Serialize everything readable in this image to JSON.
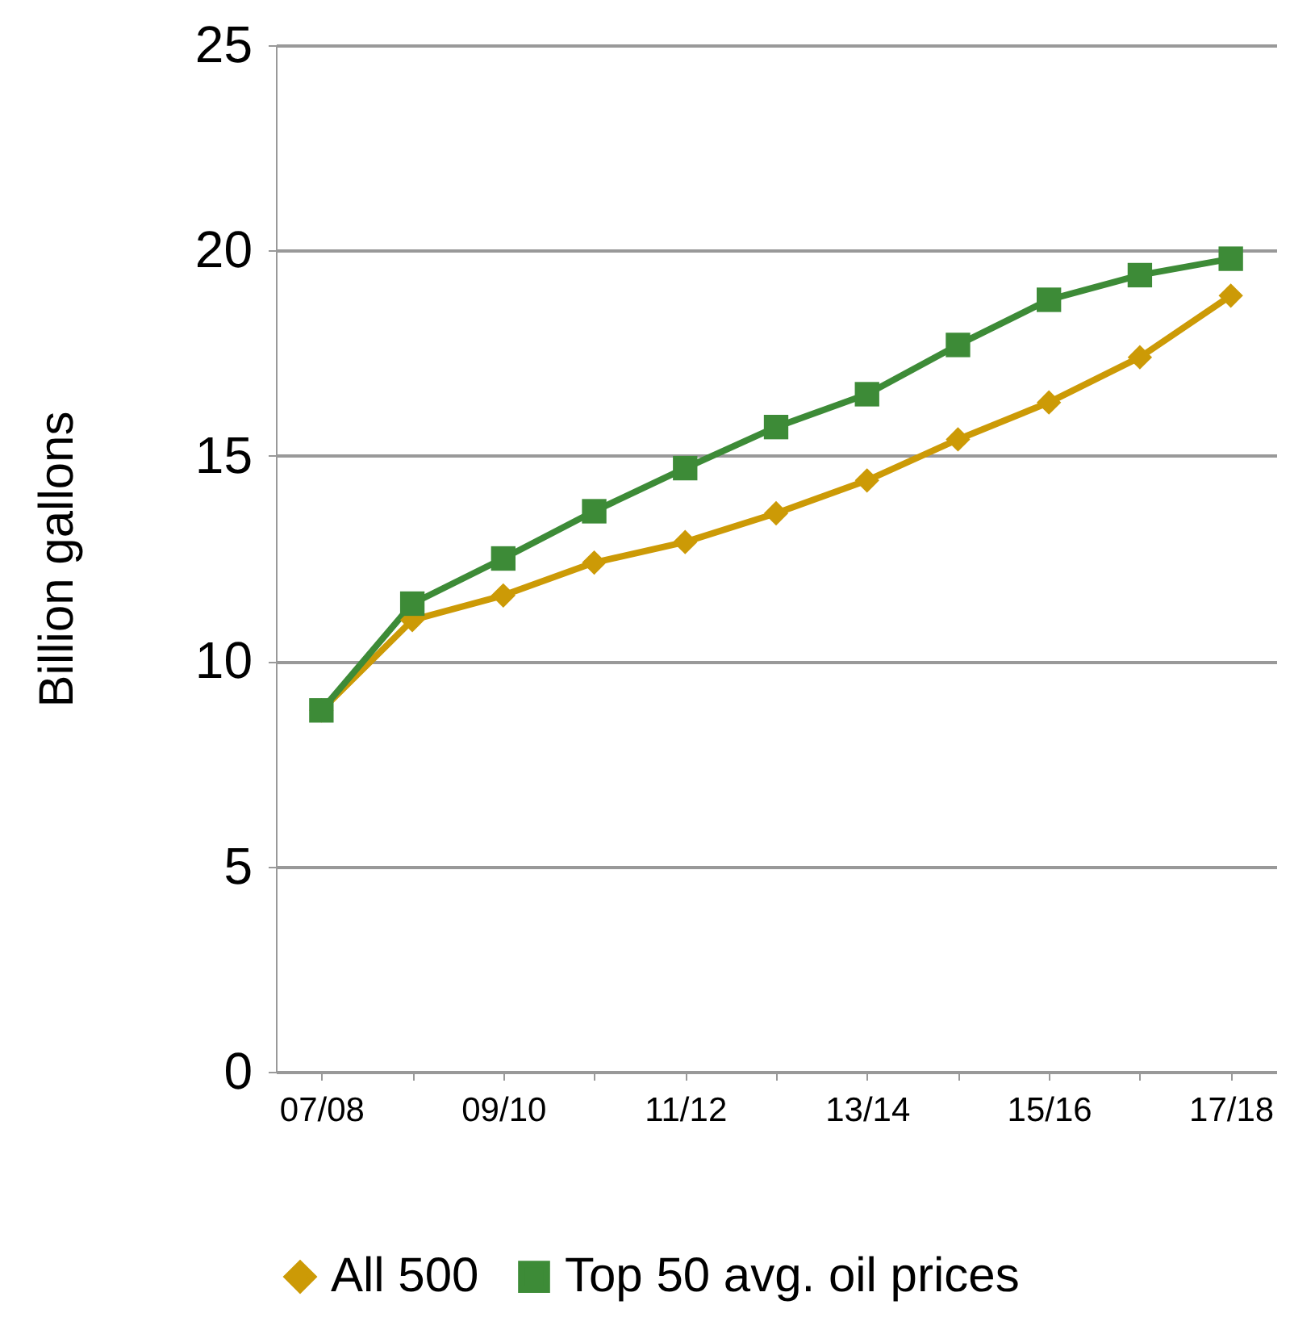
{
  "chart_data": {
    "type": "line",
    "ylabel": "Billion gallons",
    "categories": [
      "07/08",
      null,
      "09/10",
      null,
      "11/12",
      null,
      "13/14",
      null,
      "15/16",
      null,
      "17/18"
    ],
    "series": [
      {
        "name": "All 500",
        "color": "#cc9a06",
        "marker": "diamond",
        "line_style": "solid",
        "values": [
          8.8,
          11.0,
          11.6,
          12.4,
          12.9,
          13.6,
          14.4,
          15.4,
          16.3,
          17.4,
          18.9
        ]
      },
      {
        "name": "Top 50 avg. oil prices",
        "color": "#3d8b37",
        "marker": "square",
        "line_style": "solid",
        "values": [
          8.8,
          11.4,
          12.5,
          13.65,
          14.7,
          15.7,
          16.5,
          17.7,
          18.8,
          19.4,
          19.8
        ]
      }
    ],
    "ylim": [
      0,
      25
    ],
    "yticks": [
      0,
      5,
      10,
      15,
      20,
      25
    ],
    "grid": "y",
    "legend": "bottom"
  }
}
